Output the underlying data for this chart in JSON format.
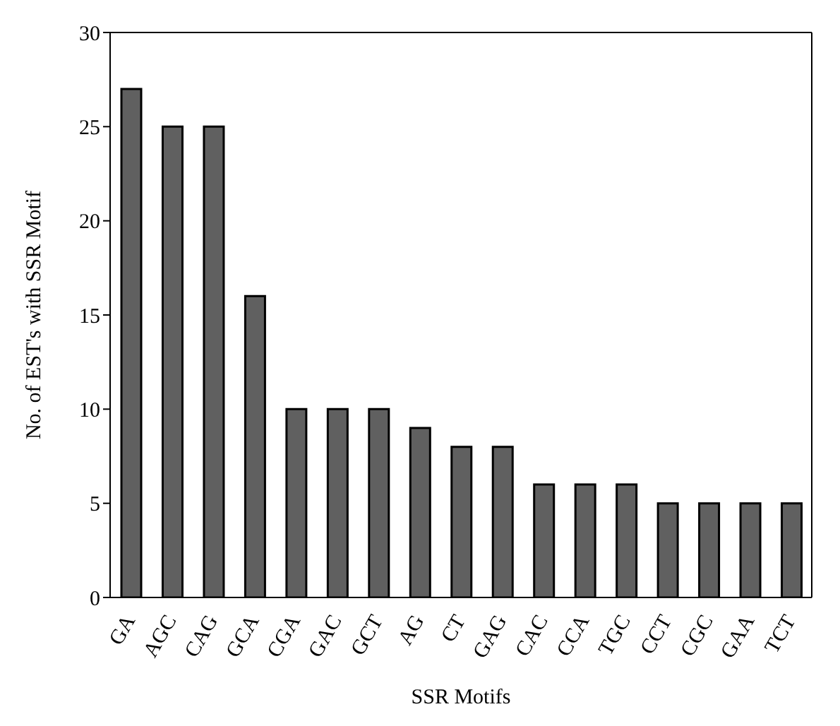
{
  "chart_data": {
    "type": "bar",
    "xlabel": "SSR Motifs",
    "ylabel": "No. of EST's with SSR Motif",
    "categories": [
      "GA",
      "AGC",
      "CAG",
      "GCA",
      "CGA",
      "GAC",
      "GCT",
      "AG",
      "CT",
      "GAG",
      "CAC",
      "CCA",
      "TGC",
      "CCT",
      "CGC",
      "GAA",
      "TCT"
    ],
    "values": [
      27,
      25,
      25,
      16,
      10,
      10,
      10,
      9,
      8,
      8,
      6,
      6,
      6,
      5,
      5,
      5,
      5
    ],
    "color": "#606060",
    "ylim": [
      0,
      30
    ],
    "yticks": [
      0,
      5,
      10,
      15,
      20,
      25,
      30
    ],
    "grid": false,
    "legend": false
  }
}
